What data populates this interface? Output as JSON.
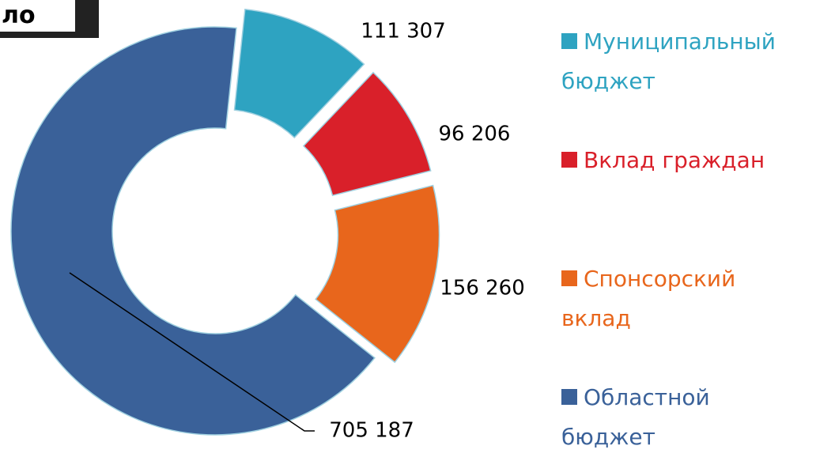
{
  "header": {
    "title": "ло"
  },
  "chart_data": {
    "type": "donut",
    "categories": [
      "Муниципальный бюджет",
      "Вклад граждан",
      "Спонсорский вклад",
      "Областной бюджет"
    ],
    "values": [
      111307,
      96206,
      156260,
      705187
    ],
    "value_labels": [
      "111 307",
      "96 206",
      "156 260",
      "705 187"
    ],
    "colors": [
      "#2ea3c1",
      "#d9202a",
      "#e8661c",
      "#3a6199"
    ],
    "legend": "right"
  }
}
